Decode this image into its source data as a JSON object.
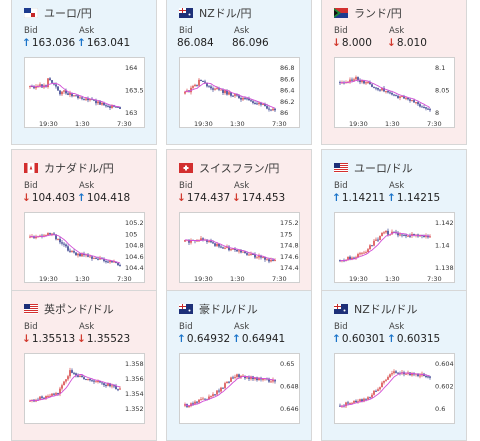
{
  "cards": [
    {
      "id": "eurjpy",
      "name": "ユーロ/円",
      "flag": "eu",
      "trend": "up",
      "bid_label": "Bid",
      "ask_label": "Ask",
      "bid": "163.036",
      "ask": "163.041",
      "bid_dir": "up",
      "ask_dir": "up",
      "yticks": [
        "164",
        "163.5",
        "163"
      ],
      "xticks": [
        "19:30",
        "1:30",
        "7:30"
      ]
    },
    {
      "id": "nzdjpy",
      "name": "NZドル/円",
      "flag": "nz",
      "trend": "up",
      "bid_label": "Bid",
      "ask_label": "Ask",
      "bid": "86.084",
      "ask": "86.096",
      "bid_dir": "",
      "ask_dir": "",
      "yticks": [
        "86.8",
        "86.6",
        "86.4",
        "86.2",
        "86"
      ],
      "xticks": [
        "19:30",
        "1:30",
        "7:30"
      ]
    },
    {
      "id": "zarjpy",
      "name": "ランド/円",
      "flag": "za",
      "trend": "down",
      "bid_label": "Bid",
      "ask_label": "Ask",
      "bid": "8.000",
      "ask": "8.010",
      "bid_dir": "down",
      "ask_dir": "down",
      "yticks": [
        "8.1",
        "8.05",
        "8"
      ],
      "xticks": [
        "19:30",
        "1:30",
        "7:30"
      ]
    },
    {
      "id": "cadjpy",
      "name": "カナダドル/円",
      "flag": "ca",
      "trend": "down",
      "bid_label": "Bid",
      "ask_label": "Ask",
      "bid": "104.403",
      "ask": "104.418",
      "bid_dir": "down",
      "ask_dir": "up",
      "yticks": [
        "105.2",
        "105",
        "104.8",
        "104.6",
        "104.4"
      ],
      "xticks": [
        "19:30",
        "1:30",
        "7:30"
      ]
    },
    {
      "id": "chfjpy",
      "name": "スイスフラン/円",
      "flag": "ch",
      "trend": "down",
      "bid_label": "Bid",
      "ask_label": "Ask",
      "bid": "174.437",
      "ask": "174.453",
      "bid_dir": "down",
      "ask_dir": "down",
      "yticks": [
        "175.2",
        "175",
        "174.8",
        "174.6",
        "174.4"
      ],
      "xticks": [
        "19:30",
        "1:30",
        "7:30"
      ]
    },
    {
      "id": "eurusd",
      "name": "ユーロ/ドル",
      "flag": "us",
      "trend": "up",
      "bid_label": "Bid",
      "ask_label": "Ask",
      "bid": "1.14211",
      "ask": "1.14215",
      "bid_dir": "up",
      "ask_dir": "up",
      "yticks": [
        "1.142",
        "1.14",
        "1.138"
      ],
      "xticks": [
        "19:30",
        "1:30",
        "7:30"
      ]
    },
    {
      "id": "gbpusd",
      "name": "英ポンド/ドル",
      "flag": "us",
      "trend": "down",
      "bid_label": "Bid",
      "ask_label": "Ask",
      "bid": "1.35513",
      "ask": "1.35523",
      "bid_dir": "down",
      "ask_dir": "down",
      "yticks": [
        "1.358",
        "1.356",
        "1.354",
        "1.352"
      ],
      "xticks": []
    },
    {
      "id": "audusd",
      "name": "豪ドル/ドル",
      "flag": "au",
      "trend": "up",
      "bid_label": "Bid",
      "ask_label": "Ask",
      "bid": "0.64932",
      "ask": "0.64941",
      "bid_dir": "up",
      "ask_dir": "up",
      "yticks": [
        "0.65",
        "0.648",
        "0.646"
      ],
      "xticks": []
    },
    {
      "id": "nzdusd",
      "name": "NZドル/ドル",
      "flag": "au",
      "trend": "up",
      "bid_label": "Bid",
      "ask_label": "Ask",
      "bid": "0.60301",
      "ask": "0.60315",
      "bid_dir": "up",
      "ask_dir": "up",
      "yticks": [
        "0.604",
        "0.602",
        "0.6"
      ],
      "xticks": []
    }
  ],
  "colors": {
    "up": "#1a73c9",
    "down": "#d23a2f",
    "ma": "#d24fd6",
    "candle_up": "#d32f2f",
    "candle_down": "#1a237e"
  }
}
